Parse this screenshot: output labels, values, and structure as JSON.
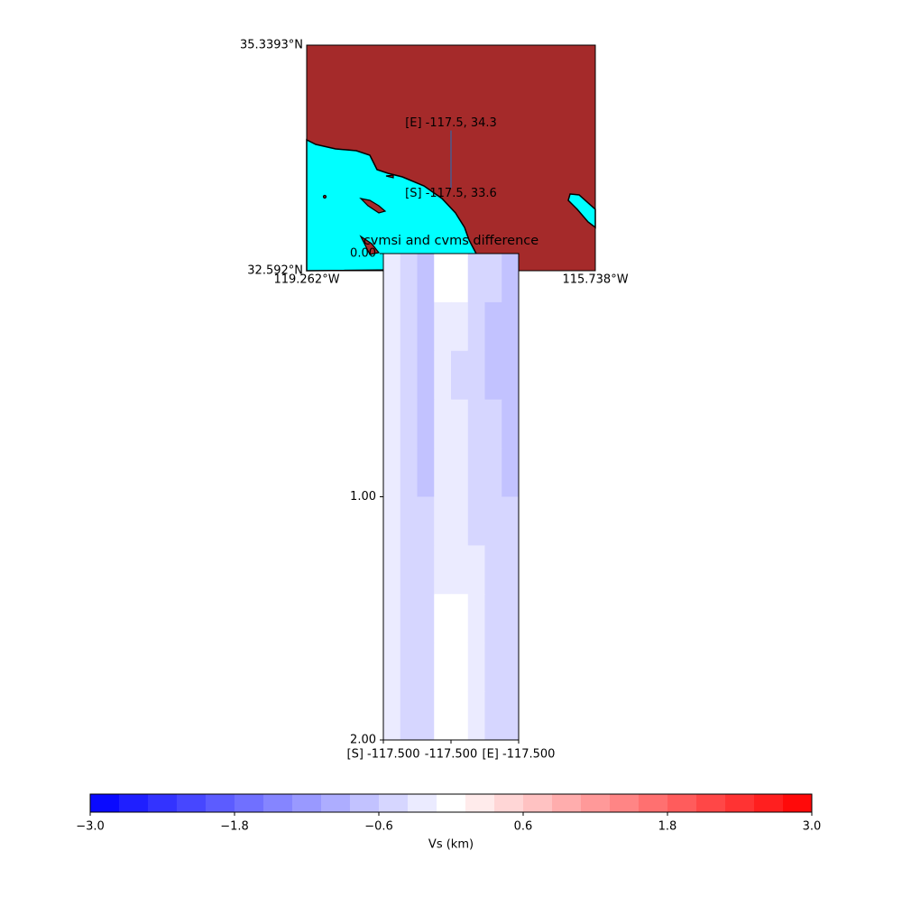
{
  "chart_data": [
    {
      "type": "map",
      "lat_ticks": [
        {
          "value": 35.3393,
          "label": "35.3393°N"
        },
        {
          "value": 32.592,
          "label": "32.592°N"
        }
      ],
      "lon_ticks": [
        {
          "value": -119.262,
          "label": "119.262°W"
        },
        {
          "value": -115.738,
          "label": "115.738°W"
        }
      ],
      "start": {
        "label": "[S] -117.5, 33.6",
        "lon": -117.5,
        "lat": 33.6
      },
      "end": {
        "label": "[E] -117.5, 34.3",
        "lon": -117.5,
        "lat": 34.3
      },
      "land_color": "#a52a2a",
      "water_color": "#00ffff",
      "line_color": "#4b5a8c"
    },
    {
      "type": "heatmap",
      "title": "cvmsi and cvms difference",
      "xlim": [
        0,
        1
      ],
      "xticks": [
        {
          "value": 0,
          "label": "[S] -117.500"
        },
        {
          "value": 0.5,
          "label": "-117.500"
        },
        {
          "value": 1,
          "label": "[E] -117.500"
        }
      ],
      "ylim": [
        0,
        2
      ],
      "yticks": [
        {
          "value": 0,
          "label": "0.00"
        },
        {
          "value": 1,
          "label": "1.00"
        },
        {
          "value": 2,
          "label": "2.00"
        }
      ],
      "y_inverted": true,
      "z": [
        [
          -0.3,
          -0.5,
          -0.7,
          0,
          0,
          -0.4,
          -0.6,
          -0.8
        ],
        [
          -0.3,
          -0.6,
          -0.8,
          -0.3,
          -0.3,
          -0.5,
          -0.7,
          -0.8
        ],
        [
          -0.3,
          -0.6,
          -0.8,
          -0.3,
          -0.4,
          -0.5,
          -0.7,
          -0.8
        ],
        [
          -0.3,
          -0.6,
          -0.7,
          -0.3,
          -0.3,
          -0.5,
          -0.6,
          -0.7
        ],
        [
          -0.3,
          -0.5,
          -0.7,
          -0.3,
          -0.3,
          -0.4,
          -0.6,
          -0.7
        ],
        [
          -0.3,
          -0.5,
          -0.6,
          -0.3,
          -0.3,
          -0.4,
          -0.5,
          -0.6
        ],
        [
          -0.3,
          -0.5,
          -0.5,
          -0.2,
          -0.2,
          -0.3,
          -0.5,
          -0.4
        ],
        [
          -0.2,
          -0.4,
          -0.4,
          -0.1,
          -0.1,
          -0.3,
          -0.4,
          -0.4
        ],
        [
          -0.2,
          -0.4,
          -0.4,
          -0.1,
          -0.1,
          -0.2,
          -0.4,
          -0.4
        ],
        [
          -0.2,
          -0.4,
          -0.4,
          -0.1,
          -0.1,
          -0.2,
          -0.4,
          -0.4
        ]
      ]
    },
    {
      "type": "colorbar",
      "label": "Vs (km)",
      "clim": [
        -3,
        3
      ],
      "levels": 25,
      "colormap": "bwr",
      "ticks": [
        {
          "value": -3,
          "label": "−3.0"
        },
        {
          "value": -1.8,
          "label": "−1.8"
        },
        {
          "value": -0.6,
          "label": "−0.6"
        },
        {
          "value": 0.6,
          "label": "0.6"
        },
        {
          "value": 1.8,
          "label": "1.8"
        },
        {
          "value": 3,
          "label": "3.0"
        }
      ]
    }
  ]
}
